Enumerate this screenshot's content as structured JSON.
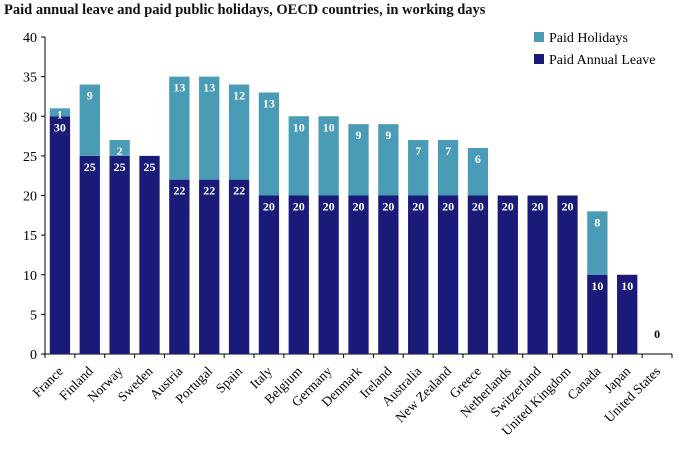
{
  "chart_data": {
    "type": "bar",
    "stacked": true,
    "title": "Paid annual leave and paid public holidays, OECD countries, in working days",
    "xlabel": "",
    "ylabel": "",
    "ylim": [
      0,
      40
    ],
    "yticks": [
      0,
      5,
      10,
      15,
      20,
      25,
      30,
      35,
      40
    ],
    "grid": false,
    "legend_position": "top-right",
    "categories": [
      "France",
      "Finland",
      "Norway",
      "Sweden",
      "Austria",
      "Portugal",
      "Spain",
      "Italy",
      "Belgium",
      "Germany",
      "Denmark",
      "Ireland",
      "Australia",
      "New Zealand",
      "Greece",
      "Netherlands",
      "Switzerland",
      "United Kingdom",
      "Canada",
      "Japan",
      "United States"
    ],
    "series": [
      {
        "name": "Paid Annual Leave",
        "color": "#1a1a78",
        "values": [
          30,
          25,
          25,
          25,
          22,
          22,
          22,
          20,
          20,
          20,
          20,
          20,
          20,
          20,
          20,
          20,
          20,
          20,
          10,
          10,
          0
        ]
      },
      {
        "name": "Paid Holidays",
        "color": "#4a9bb5",
        "values": [
          1,
          9,
          2,
          0,
          13,
          13,
          12,
          13,
          10,
          10,
          9,
          9,
          7,
          7,
          6,
          0,
          0,
          0,
          8,
          0,
          0
        ]
      }
    ],
    "legend": [
      "Paid Holidays",
      "Paid Annual Leave"
    ]
  }
}
